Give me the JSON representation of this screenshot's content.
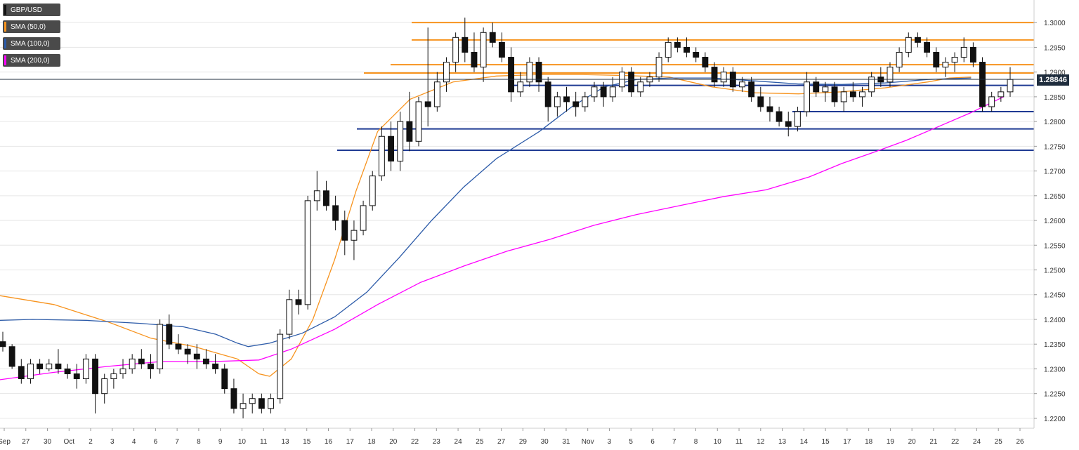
{
  "legend": [
    {
      "label": "GBP/USD",
      "color": "#111111"
    },
    {
      "label": "SMA (50,0)",
      "color": "#f7931e"
    },
    {
      "label": "SMA (100,0)",
      "color": "#2b5aa8"
    },
    {
      "label": "SMA (200,0)",
      "color": "#ff00ff"
    }
  ],
  "last_price": "1.28846",
  "chart_data": {
    "type": "candlestick",
    "symbol": "GBP/USD",
    "y_ticks": [
      "1.3000",
      "1.2950",
      "1.2900",
      "1.2850",
      "1.2800",
      "1.2750",
      "1.2700",
      "1.2650",
      "1.2600",
      "1.2550",
      "1.2500",
      "1.2450",
      "1.2400",
      "1.2350",
      "1.2300",
      "1.2250",
      "1.2200"
    ],
    "ylim": [
      1.218,
      1.304
    ],
    "x_ticks": [
      "Sep",
      "27",
      "30",
      "Oct",
      "2",
      "3",
      "4",
      "6",
      "7",
      "8",
      "9",
      "10",
      "11",
      "13",
      "15",
      "16",
      "17",
      "18",
      "20",
      "22",
      "23",
      "24",
      "25",
      "27",
      "29",
      "30",
      "31",
      "Nov",
      "3",
      "5",
      "6",
      "7",
      "8",
      "10",
      "11",
      "12",
      "13",
      "14",
      "15",
      "17",
      "18",
      "19",
      "20",
      "21",
      "22",
      "24",
      "25",
      "26"
    ],
    "resistance_levels": [
      1.3,
      1.2965,
      1.2915,
      1.2898
    ],
    "support_levels": [
      1.2873,
      1.282,
      1.2785,
      1.2742
    ],
    "colors": {
      "bull": "#ffffff",
      "bear": "#111111",
      "sma50": "#f7931e",
      "sma100": "#2b5aa8",
      "sma200": "#ff00ff",
      "resistance": "#f7931e",
      "support": "#1f3a93",
      "grid": "#e6e6e6"
    },
    "series": [
      {
        "name": "SMA (50,0)",
        "points": [
          [
            0,
            1.2448
          ],
          [
            0.05,
            1.243
          ],
          [
            0.1,
            1.2395
          ],
          [
            0.14,
            1.2362
          ],
          [
            0.18,
            1.2345
          ],
          [
            0.22,
            1.232
          ],
          [
            0.24,
            1.229
          ],
          [
            0.25,
            1.2285
          ],
          [
            0.27,
            1.232
          ],
          [
            0.29,
            1.24
          ],
          [
            0.31,
            1.252
          ],
          [
            0.33,
            1.266
          ],
          [
            0.35,
            1.278
          ],
          [
            0.38,
            1.2845
          ],
          [
            0.42,
            1.288
          ],
          [
            0.46,
            1.2892
          ],
          [
            0.5,
            1.2895
          ],
          [
            0.54,
            1.2895
          ],
          [
            0.58,
            1.2893
          ],
          [
            0.62,
            1.289
          ],
          [
            0.66,
            1.287
          ],
          [
            0.7,
            1.2858
          ],
          [
            0.74,
            1.2856
          ],
          [
            0.78,
            1.286
          ],
          [
            0.82,
            1.2868
          ],
          [
            0.86,
            1.288
          ],
          [
            0.88,
            1.2888
          ],
          [
            0.9,
            1.289
          ]
        ]
      },
      {
        "name": "SMA (100,0)",
        "points": [
          [
            0,
            1.2398
          ],
          [
            0.03,
            1.24
          ],
          [
            0.08,
            1.2398
          ],
          [
            0.13,
            1.2392
          ],
          [
            0.17,
            1.2385
          ],
          [
            0.2,
            1.237
          ],
          [
            0.22,
            1.2352
          ],
          [
            0.23,
            1.2345
          ],
          [
            0.25,
            1.2352
          ],
          [
            0.28,
            1.2372
          ],
          [
            0.31,
            1.2405
          ],
          [
            0.34,
            1.2455
          ],
          [
            0.37,
            1.2525
          ],
          [
            0.4,
            1.26
          ],
          [
            0.43,
            1.2668
          ],
          [
            0.46,
            1.2725
          ],
          [
            0.5,
            1.278
          ],
          [
            0.53,
            1.283
          ],
          [
            0.56,
            1.287
          ],
          [
            0.59,
            1.2885
          ],
          [
            0.62,
            1.2888
          ],
          [
            0.66,
            1.2888
          ],
          [
            0.7,
            1.2882
          ],
          [
            0.74,
            1.2876
          ],
          [
            0.78,
            1.2875
          ],
          [
            0.82,
            1.2878
          ],
          [
            0.86,
            1.2885
          ],
          [
            0.9,
            1.2888
          ]
        ]
      },
      {
        "name": "SMA (200,0)",
        "points": [
          [
            0,
            1.2278
          ],
          [
            0.05,
            1.2293
          ],
          [
            0.1,
            1.2305
          ],
          [
            0.15,
            1.2315
          ],
          [
            0.2,
            1.2315
          ],
          [
            0.24,
            1.2318
          ],
          [
            0.27,
            1.234
          ],
          [
            0.31,
            1.238
          ],
          [
            0.35,
            1.243
          ],
          [
            0.39,
            1.2475
          ],
          [
            0.43,
            1.2508
          ],
          [
            0.47,
            1.2538
          ],
          [
            0.51,
            1.2562
          ],
          [
            0.55,
            1.259
          ],
          [
            0.59,
            1.2612
          ],
          [
            0.63,
            1.263
          ],
          [
            0.67,
            1.2648
          ],
          [
            0.71,
            1.2662
          ],
          [
            0.75,
            1.2688
          ],
          [
            0.78,
            1.2715
          ],
          [
            0.81,
            1.2738
          ],
          [
            0.84,
            1.2762
          ],
          [
            0.87,
            1.279
          ],
          [
            0.9,
            1.2818
          ],
          [
            0.93,
            1.285
          ]
        ]
      }
    ],
    "candles": [
      [
        1.2355,
        1.2375,
        1.2335,
        1.2345
      ],
      [
        1.2345,
        1.235,
        1.23,
        1.2305
      ],
      [
        1.2305,
        1.232,
        1.227,
        1.228
      ],
      [
        1.228,
        1.232,
        1.227,
        1.231
      ],
      [
        1.231,
        1.232,
        1.229,
        1.23
      ],
      [
        1.23,
        1.232,
        1.2295,
        1.231
      ],
      [
        1.231,
        1.234,
        1.229,
        1.23
      ],
      [
        1.23,
        1.231,
        1.228,
        1.229
      ],
      [
        1.229,
        1.231,
        1.226,
        1.228
      ],
      [
        1.228,
        1.233,
        1.227,
        1.232
      ],
      [
        1.232,
        1.233,
        1.221,
        1.225
      ],
      [
        1.225,
        1.229,
        1.223,
        1.228
      ],
      [
        1.228,
        1.23,
        1.226,
        1.229
      ],
      [
        1.229,
        1.232,
        1.228,
        1.23
      ],
      [
        1.23,
        1.233,
        1.229,
        1.232
      ],
      [
        1.232,
        1.234,
        1.23,
        1.231
      ],
      [
        1.231,
        1.233,
        1.228,
        1.23
      ],
      [
        1.23,
        1.24,
        1.229,
        1.239
      ],
      [
        1.239,
        1.241,
        1.234,
        1.235
      ],
      [
        1.235,
        1.237,
        1.233,
        1.234
      ],
      [
        1.234,
        1.235,
        1.231,
        1.233
      ],
      [
        1.233,
        1.235,
        1.23,
        1.232
      ],
      [
        1.232,
        1.234,
        1.23,
        1.231
      ],
      [
        1.231,
        1.233,
        1.229,
        1.23
      ],
      [
        1.23,
        1.231,
        1.225,
        1.226
      ],
      [
        1.226,
        1.228,
        1.221,
        1.222
      ],
      [
        1.222,
        1.225,
        1.22,
        1.223
      ],
      [
        1.223,
        1.225,
        1.221,
        1.224
      ],
      [
        1.224,
        1.225,
        1.221,
        1.222
      ],
      [
        1.222,
        1.225,
        1.221,
        1.224
      ],
      [
        1.224,
        1.238,
        1.223,
        1.237
      ],
      [
        1.237,
        1.246,
        1.236,
        1.244
      ],
      [
        1.244,
        1.246,
        1.241,
        1.243
      ],
      [
        1.243,
        1.265,
        1.242,
        1.264
      ],
      [
        1.264,
        1.27,
        1.262,
        1.266
      ],
      [
        1.266,
        1.268,
        1.262,
        1.263
      ],
      [
        1.263,
        1.265,
        1.258,
        1.26
      ],
      [
        1.26,
        1.262,
        1.253,
        1.256
      ],
      [
        1.256,
        1.26,
        1.252,
        1.258
      ],
      [
        1.258,
        1.264,
        1.257,
        1.263
      ],
      [
        1.263,
        1.27,
        1.262,
        1.269
      ],
      [
        1.269,
        1.279,
        1.268,
        1.277
      ],
      [
        1.277,
        1.28,
        1.27,
        1.272
      ],
      [
        1.272,
        1.282,
        1.27,
        1.28
      ],
      [
        1.28,
        1.286,
        1.274,
        1.276
      ],
      [
        1.276,
        1.285,
        1.275,
        1.284
      ],
      [
        1.284,
        1.299,
        1.279,
        1.283
      ],
      [
        1.283,
        1.29,
        1.282,
        1.288
      ],
      [
        1.288,
        1.293,
        1.286,
        1.292
      ],
      [
        1.292,
        1.298,
        1.29,
        1.297
      ],
      [
        1.297,
        1.301,
        1.292,
        1.294
      ],
      [
        1.294,
        1.298,
        1.29,
        1.291
      ],
      [
        1.291,
        1.299,
        1.288,
        1.298
      ],
      [
        1.298,
        1.3,
        1.295,
        1.296
      ],
      [
        1.296,
        1.298,
        1.292,
        1.293
      ],
      [
        1.293,
        1.295,
        1.284,
        1.286
      ],
      [
        1.286,
        1.29,
        1.285,
        1.288
      ],
      [
        1.288,
        1.293,
        1.287,
        1.292
      ],
      [
        1.292,
        1.293,
        1.286,
        1.288
      ],
      [
        1.288,
        1.289,
        1.28,
        1.283
      ],
      [
        1.283,
        1.286,
        1.281,
        1.285
      ],
      [
        1.285,
        1.287,
        1.282,
        1.284
      ],
      [
        1.284,
        1.286,
        1.281,
        1.283
      ],
      [
        1.283,
        1.286,
        1.282,
        1.285
      ],
      [
        1.285,
        1.288,
        1.284,
        1.287
      ],
      [
        1.287,
        1.288,
        1.283,
        1.285
      ],
      [
        1.285,
        1.289,
        1.284,
        1.287
      ],
      [
        1.287,
        1.291,
        1.286,
        1.29
      ],
      [
        1.29,
        1.291,
        1.285,
        1.286
      ],
      [
        1.286,
        1.289,
        1.285,
        1.288
      ],
      [
        1.288,
        1.29,
        1.287,
        1.289
      ],
      [
        1.289,
        1.294,
        1.288,
        1.293
      ],
      [
        1.293,
        1.297,
        1.292,
        1.296
      ],
      [
        1.296,
        1.297,
        1.294,
        1.295
      ],
      [
        1.295,
        1.297,
        1.293,
        1.294
      ],
      [
        1.294,
        1.295,
        1.292,
        1.293
      ],
      [
        1.293,
        1.294,
        1.29,
        1.291
      ],
      [
        1.291,
        1.292,
        1.287,
        1.288
      ],
      [
        1.288,
        1.291,
        1.287,
        1.29
      ],
      [
        1.29,
        1.291,
        1.286,
        1.287
      ],
      [
        1.287,
        1.289,
        1.286,
        1.288
      ],
      [
        1.288,
        1.289,
        1.284,
        1.285
      ],
      [
        1.285,
        1.287,
        1.282,
        1.283
      ],
      [
        1.283,
        1.285,
        1.28,
        1.282
      ],
      [
        1.282,
        1.283,
        1.279,
        1.28
      ],
      [
        1.28,
        1.282,
        1.277,
        1.279
      ],
      [
        1.279,
        1.283,
        1.278,
        1.282
      ],
      [
        1.282,
        1.29,
        1.281,
        1.288
      ],
      [
        1.288,
        1.289,
        1.285,
        1.286
      ],
      [
        1.286,
        1.288,
        1.284,
        1.287
      ],
      [
        1.287,
        1.288,
        1.283,
        1.284
      ],
      [
        1.284,
        1.287,
        1.282,
        1.286
      ],
      [
        1.286,
        1.288,
        1.284,
        1.285
      ],
      [
        1.285,
        1.287,
        1.283,
        1.286
      ],
      [
        1.286,
        1.29,
        1.285,
        1.289
      ],
      [
        1.289,
        1.291,
        1.287,
        1.288
      ],
      [
        1.288,
        1.292,
        1.287,
        1.291
      ],
      [
        1.291,
        1.295,
        1.29,
        1.294
      ],
      [
        1.294,
        1.298,
        1.293,
        1.297
      ],
      [
        1.297,
        1.298,
        1.295,
        1.296
      ],
      [
        1.296,
        1.297,
        1.293,
        1.294
      ],
      [
        1.294,
        1.295,
        1.29,
        1.291
      ],
      [
        1.291,
        1.293,
        1.289,
        1.292
      ],
      [
        1.292,
        1.294,
        1.29,
        1.293
      ],
      [
        1.293,
        1.297,
        1.292,
        1.295
      ],
      [
        1.295,
        1.296,
        1.291,
        1.292
      ],
      [
        1.292,
        1.293,
        1.282,
        1.283
      ],
      [
        1.283,
        1.286,
        1.282,
        1.285
      ],
      [
        1.285,
        1.287,
        1.284,
        1.286
      ],
      [
        1.286,
        1.291,
        1.285,
        1.2885
      ]
    ]
  }
}
